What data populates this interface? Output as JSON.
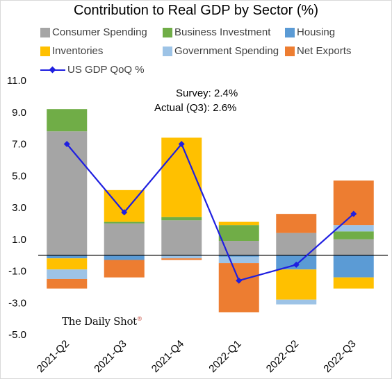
{
  "chart_data": {
    "type": "bar",
    "stacked": true,
    "title": "Contribution to Real GDP by Sector (%)",
    "categories": [
      "2021-Q2",
      "2021-Q3",
      "2021-Q4",
      "2022-Q1",
      "2022-Q2",
      "2022-Q3"
    ],
    "yticks": [
      "11.0",
      "9.0",
      "7.0",
      "5.0",
      "3.0",
      "1.0",
      "-1.0",
      "-3.0",
      "-5.0"
    ],
    "ylim": [
      -5,
      11
    ],
    "grid": false,
    "legend_position": "top",
    "series": [
      {
        "name": "Consumer Spending",
        "color": "#a5a5a5",
        "values": [
          7.8,
          2.0,
          2.2,
          0.9,
          1.4,
          1.0
        ]
      },
      {
        "name": "Business Investment",
        "color": "#70ad47",
        "values": [
          1.4,
          0.1,
          0.2,
          1.0,
          0.0,
          0.5
        ]
      },
      {
        "name": "Housing",
        "color": "#5b9bd5",
        "values": [
          -0.2,
          -0.3,
          0.0,
          -0.1,
          -0.9,
          -1.4
        ]
      },
      {
        "name": "Inventories",
        "color": "#ffc000",
        "values": [
          -0.7,
          2.0,
          5.0,
          0.2,
          -1.9,
          -0.7
        ]
      },
      {
        "name": "Government Spending",
        "color": "#9dc3e6",
        "values": [
          -0.6,
          0.0,
          -0.2,
          -0.4,
          -0.3,
          0.4
        ]
      },
      {
        "name": "Net Exports",
        "color": "#ed7d31",
        "values": [
          -0.6,
          -1.1,
          -0.1,
          -3.1,
          1.2,
          2.8
        ]
      }
    ],
    "line": {
      "name": "US GDP QoQ %",
      "color": "#1f1fe0",
      "values": [
        7.0,
        2.7,
        7.0,
        -1.6,
        -0.6,
        2.6
      ]
    },
    "annotations": [
      {
        "label": "Survey:",
        "value": "2.4%"
      },
      {
        "label": "Actual (Q3):",
        "value": "2.6%"
      }
    ]
  },
  "legend": {
    "consumer": "Consumer Spending",
    "business": "Business Investment",
    "housing": "Housing",
    "inventories": "Inventories",
    "government": "Government Spending",
    "net_exports": "Net Exports",
    "gdp_line": "US GDP QoQ %"
  },
  "source_logo": "The Daily Shot",
  "source_logo_mark": "®"
}
